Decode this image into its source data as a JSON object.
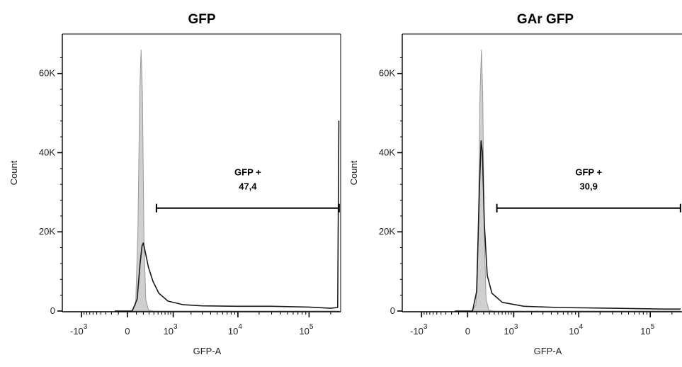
{
  "chart_data": [
    {
      "type": "area",
      "title": "GFP",
      "xlabel": "GFP-A",
      "ylabel": "Count",
      "ylim": [
        0,
        68000
      ],
      "y_ticks": [
        {
          "value": 0,
          "label": "0"
        },
        {
          "value": 20000,
          "label": "20K"
        },
        {
          "value": 40000,
          "label": "40K"
        },
        {
          "value": 60000,
          "label": "60K"
        }
      ],
      "x_ticks": [
        {
          "position": -1000,
          "label": "-10",
          "exp": "3"
        },
        {
          "position": 0,
          "label": "0",
          "exp": ""
        },
        {
          "position": 1000,
          "label": "10",
          "exp": "3"
        },
        {
          "position": 10000,
          "label": "10",
          "exp": "4"
        },
        {
          "position": 100000,
          "label": "10",
          "exp": "5"
        }
      ],
      "series": [
        {
          "role": "control",
          "fill": "#cfcfcf",
          "stroke": "#9a9a9a",
          "points": [
            [
              -150,
              0
            ],
            [
              40,
              0
            ],
            [
              90,
              1500
            ],
            [
              120,
              20000
            ],
            [
              145,
              55000
            ],
            [
              165,
              66000
            ],
            [
              185,
              55000
            ],
            [
              210,
              18000
            ],
            [
              240,
              3000
            ],
            [
              290,
              200
            ],
            [
              400,
              0
            ],
            [
              263000,
              0
            ]
          ]
        },
        {
          "role": "sample",
          "fill": "none",
          "stroke": "#1a1a1a",
          "points": [
            [
              -150,
              0
            ],
            [
              50,
              0
            ],
            [
              110,
              3000
            ],
            [
              150,
              12000
            ],
            [
              180,
              16500
            ],
            [
              200,
              17200
            ],
            [
              230,
              15000
            ],
            [
              290,
              11000
            ],
            [
              380,
              7500
            ],
            [
              520,
              4500
            ],
            [
              800,
              2500
            ],
            [
              1500,
              1600
            ],
            [
              3000,
              1300
            ],
            [
              10000,
              1200
            ],
            [
              30000,
              1200
            ],
            [
              100000,
              1000
            ],
            [
              200000,
              700
            ],
            [
              250000,
              900
            ],
            [
              260000,
              48000
            ],
            [
              263000,
              48000
            ]
          ]
        }
      ],
      "gate": {
        "label": "GFP +",
        "value": "47,4",
        "x_start": 460,
        "x_end": 262000,
        "y": 26000
      }
    },
    {
      "type": "area",
      "title": "GAr GFP",
      "xlabel": "GFP-A",
      "ylabel": "Count",
      "ylim": [
        0,
        68000
      ],
      "y_ticks": [
        {
          "value": 0,
          "label": "0"
        },
        {
          "value": 20000,
          "label": "20K"
        },
        {
          "value": 40000,
          "label": "40K"
        },
        {
          "value": 60000,
          "label": "60K"
        }
      ],
      "x_ticks": [
        {
          "position": -1000,
          "label": "-10",
          "exp": "3"
        },
        {
          "position": 0,
          "label": "0",
          "exp": ""
        },
        {
          "position": 1000,
          "label": "10",
          "exp": "3"
        },
        {
          "position": 10000,
          "label": "10",
          "exp": "4"
        },
        {
          "position": 100000,
          "label": "10",
          "exp": "5"
        }
      ],
      "series": [
        {
          "role": "control",
          "fill": "#cfcfcf",
          "stroke": "#9a9a9a",
          "points": [
            [
              -150,
              0
            ],
            [
              40,
              0
            ],
            [
              90,
              1500
            ],
            [
              120,
              20000
            ],
            [
              145,
              55000
            ],
            [
              165,
              66000
            ],
            [
              185,
              55000
            ],
            [
              210,
              18000
            ],
            [
              240,
              3000
            ],
            [
              290,
              200
            ],
            [
              400,
              0
            ],
            [
              263000,
              0
            ]
          ]
        },
        {
          "role": "sample",
          "fill": "none",
          "stroke": "#1a1a1a",
          "points": [
            [
              -150,
              0
            ],
            [
              50,
              0
            ],
            [
              100,
              5000
            ],
            [
              135,
              30000
            ],
            [
              160,
              43000
            ],
            [
              180,
              40000
            ],
            [
              210,
              22000
            ],
            [
              260,
              9000
            ],
            [
              350,
              4500
            ],
            [
              600,
              2200
            ],
            [
              1500,
              1200
            ],
            [
              5000,
              900
            ],
            [
              30000,
              700
            ],
            [
              150000,
              500
            ],
            [
              263000,
              500
            ]
          ]
        }
      ],
      "gate": {
        "label": "GFP +",
        "value": "30,9",
        "x_start": 460,
        "x_end": 262000,
        "y": 26000
      }
    }
  ]
}
